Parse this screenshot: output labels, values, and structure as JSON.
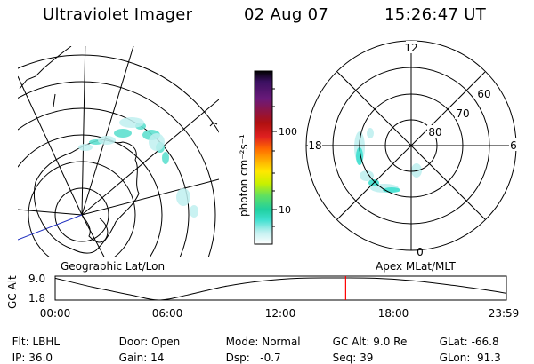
{
  "header": {
    "instrument": "Ultraviolet Imager",
    "date": "02 Aug 07",
    "time": "15:26:47 UT"
  },
  "panels": {
    "left_label": "Geographic Lat/Lon",
    "right_label": "Apex MLat/MLT"
  },
  "colorbar": {
    "unit_label": "photon cm⁻²s⁻¹",
    "ticks": [
      "100",
      "10"
    ],
    "scale": "log",
    "colors": [
      "#000000",
      "#3a1060",
      "#5a1a8a",
      "#8a1a4a",
      "#b01010",
      "#e02020",
      "#ff6a00",
      "#ffb000",
      "#ffe800",
      "#c8f000",
      "#60e060",
      "#20d0a0",
      "#40e0d0",
      "#c0f0f0",
      "#ffffff"
    ]
  },
  "polar_plot": {
    "mlt_labels": [
      "12",
      "18",
      "6",
      "0"
    ],
    "mlat_labels": [
      "60",
      "70",
      "80"
    ]
  },
  "timeline": {
    "ylabel": "GC Alt",
    "yticks": [
      "9.0",
      "1.8"
    ],
    "xticks": [
      "00:00",
      "06:00",
      "12:00",
      "18:00",
      "23:59"
    ],
    "current_time_hours": 15.45,
    "marker_color": "#ff0000"
  },
  "chart_data": {
    "type": "line",
    "title": "GC Alt",
    "xlabel": "",
    "ylabel": "GC Alt",
    "x_units": "hours UT",
    "xlim": [
      0,
      24
    ],
    "ylim": [
      1.8,
      9.0
    ],
    "series": [
      {
        "values_x": [
          0,
          2,
          4,
          5.5,
          7,
          9,
          11,
          13,
          15,
          17,
          19,
          21,
          23,
          24
        ],
        "values_y": [
          8.9,
          6.0,
          3.5,
          1.8,
          3.4,
          6.2,
          8.0,
          8.9,
          9.0,
          8.9,
          8.1,
          6.7,
          5.0,
          4.0
        ]
      }
    ]
  },
  "info": {
    "flt_label": "Flt:",
    "flt_value": "LBHL",
    "ip_label": "IP:",
    "ip_value": "36.0",
    "door_label": "Door:",
    "door_value": "Open",
    "gain_label": "Gain:",
    "gain_value": "14",
    "mode_label": "Mode:",
    "mode_value": "Normal",
    "dsp_label": "Dsp:",
    "dsp_value": "-0.7",
    "gcalt_label": "GC Alt:",
    "gcalt_value": "9.0 Re",
    "seq_label": "Seq:",
    "seq_value": "39",
    "glat_label": "GLat:",
    "glat_value": "-66.8",
    "glon_label": "GLon:",
    "glon_value": "91.3"
  }
}
